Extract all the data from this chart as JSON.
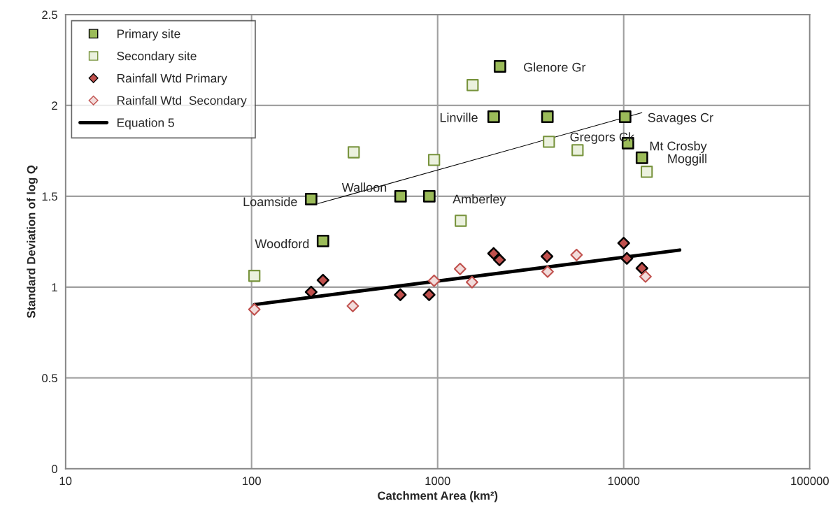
{
  "chart_data": {
    "type": "scatter",
    "xlabel": "Catchment Area (km²)",
    "ylabel": "Standard Deviation of log Q",
    "log": "x",
    "xlim": [
      10,
      100000
    ],
    "xticks": [
      10,
      100,
      1000,
      10000,
      100000
    ],
    "ylim": [
      0,
      2.5
    ],
    "yticks": [
      0,
      0.5,
      1,
      1.5,
      2,
      2.5
    ],
    "grid": true,
    "legend": "top left",
    "series": [
      {
        "name": "Primary site",
        "marker": "square",
        "color": "#9bbb59",
        "x": [
          209,
          242,
          632,
          902,
          2000,
          2163,
          3890,
          10180,
          10540,
          12530
        ],
        "values": [
          1.485,
          1.254,
          1.5,
          1.5,
          1.938,
          2.215,
          1.938,
          1.938,
          1.792,
          1.712
        ]
      },
      {
        "name": "Secondary site",
        "marker": "square",
        "color": "#ebf1de",
        "x": [
          103.5,
          354,
          957,
          1331,
          1542,
          3963,
          5650,
          13300
        ],
        "values": [
          1.062,
          1.742,
          1.7,
          1.365,
          2.112,
          1.8,
          1.754,
          1.635
        ]
      },
      {
        "name": "Rainfall Wtd Primary",
        "marker": "diamond",
        "color": "#c0504d",
        "x": [
          209,
          242,
          630,
          900,
          2000,
          2150,
          3870,
          10000,
          10400,
          12530
        ],
        "values": [
          0.973,
          1.038,
          0.958,
          0.958,
          1.185,
          1.15,
          1.169,
          1.242,
          1.158,
          1.104
        ]
      },
      {
        "name": "Rainfall Wtd  Secondary",
        "marker": "diamond",
        "color": "#f2dcdb",
        "x": [
          103.5,
          350,
          957,
          1320,
          1530,
          3900,
          5580,
          13100
        ],
        "values": [
          0.877,
          0.896,
          1.035,
          1.1,
          1.027,
          1.085,
          1.177,
          1.058
        ]
      },
      {
        "name": "Equation 5",
        "type": "line",
        "marker": "none",
        "color": "#000000",
        "x": [
          103.5,
          20000
        ],
        "values": [
          0.904,
          1.204
        ]
      },
      {
        "type": "line",
        "marker": "none",
        "color": "#000000",
        "x": [
          228,
          12530
        ],
        "values": [
          1.46,
          1.96
        ]
      }
    ],
    "annotations": [
      {
        "text": "Loamside",
        "x": 209,
        "y": 1.485
      },
      {
        "text": "Woodford",
        "x": 242,
        "y": 1.254
      },
      {
        "text": "Walloon",
        "x": 632,
        "y": 1.5
      },
      {
        "text": "Amberley",
        "x": 902,
        "y": 1.5
      },
      {
        "text": "Linville",
        "x": 2000,
        "y": 1.938
      },
      {
        "text": "Glenore Gr",
        "x": 2163,
        "y": 2.215
      },
      {
        "text": "Gregors Ck",
        "x": 3890,
        "y": 1.938
      },
      {
        "text": "Savages Cr",
        "x": 10180,
        "y": 1.938
      },
      {
        "text": "Mt Crosby",
        "x": 10540,
        "y": 1.792
      },
      {
        "text": "Moggill",
        "x": 12530,
        "y": 1.712
      }
    ]
  }
}
